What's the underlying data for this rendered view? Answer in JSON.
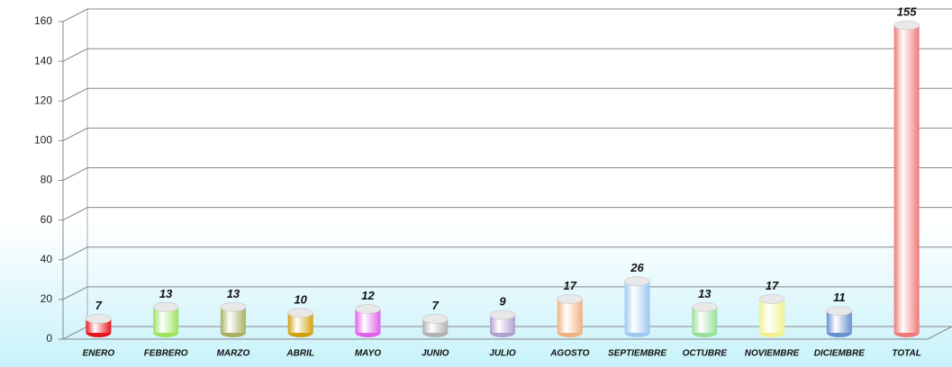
{
  "chart_data": {
    "type": "bar",
    "categories": [
      "ENERO",
      "FEBRERO",
      "MARZO",
      "ABRIL",
      "MAYO",
      "JUNIO",
      "JULIO",
      "AGOSTO",
      "SEPTIEMBRE",
      "OCTUBRE",
      "NOVIEMBRE",
      "DICIEMBRE",
      "TOTAL"
    ],
    "values": [
      7,
      13,
      13,
      10,
      12,
      7,
      9,
      17,
      26,
      13,
      17,
      11,
      155
    ],
    "colors": [
      "#e8141c",
      "#9be25a",
      "#a8b060",
      "#d4a010",
      "#e060e8",
      "#b0b0b0",
      "#b0a0d0",
      "#f0b080",
      "#9cc8f0",
      "#98e098",
      "#f0f090",
      "#6890d0",
      "#f07878"
    ],
    "ylim": [
      0,
      160
    ],
    "yticks": [
      0,
      20,
      40,
      60,
      80,
      100,
      120,
      140,
      160
    ],
    "grid": true
  }
}
